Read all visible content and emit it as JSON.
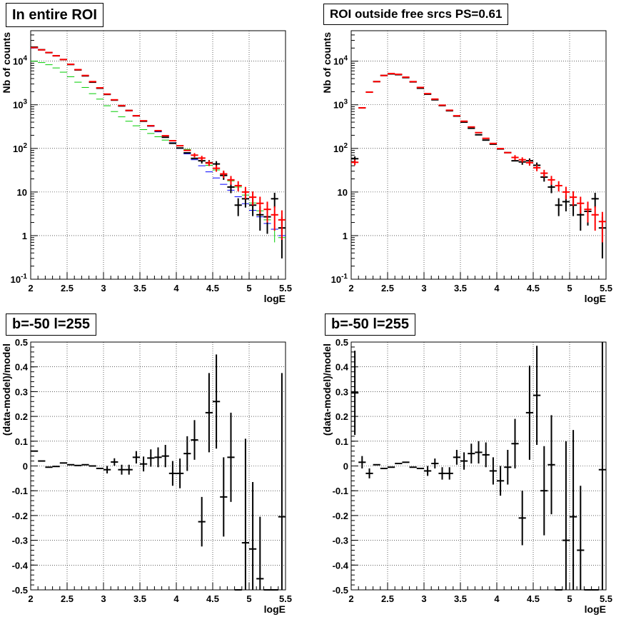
{
  "chart_data": [
    {
      "type": "scatter",
      "title": "In entire ROI",
      "xlabel": "logE",
      "ylabel": "Nb of counts",
      "xlim": [
        2,
        5.5
      ],
      "ylim": [
        0.1,
        50000
      ],
      "log_y": true,
      "grid": true,
      "x_ticks": [
        "2",
        "2.5",
        "3",
        "3.5",
        "4",
        "4.5",
        "5",
        "5.5"
      ],
      "y_ticks": [
        {
          "value": 0.1,
          "base": "10",
          "exp": "-1"
        },
        {
          "value": 1,
          "label": "1"
        },
        {
          "value": 10,
          "label": "10"
        },
        {
          "value": 100,
          "base": "10",
          "exp": "2"
        },
        {
          "value": 1000,
          "base": "10",
          "exp": "3"
        },
        {
          "value": 10000,
          "base": "10",
          "exp": "4"
        }
      ],
      "series": [
        {
          "color": "#00cc00",
          "lw": 1,
          "x": [
            2.05,
            2.15,
            2.25,
            2.35,
            2.45,
            2.55,
            2.65,
            2.75,
            2.85,
            2.95,
            3.05,
            3.15,
            3.25,
            3.35,
            3.45,
            3.55,
            3.65,
            3.75,
            3.85,
            3.95,
            4.05,
            4.15,
            4.25,
            4.35,
            4.45,
            4.55,
            4.65,
            4.75,
            4.85,
            4.95,
            5.05,
            5.15,
            5.25,
            5.35,
            5.45
          ],
          "y": [
            10000,
            9300,
            8300,
            7000,
            5600,
            4400,
            3300,
            2500,
            1800,
            1350,
            950,
            700,
            530,
            420,
            330,
            270,
            220,
            185,
            155,
            135,
            115,
            95,
            70,
            52,
            41,
            32,
            24,
            18,
            13,
            8.5,
            5.6,
            3.7,
            2.3,
            1.4,
            0.9
          ],
          "err": [
            0,
            0,
            0,
            0,
            0,
            0,
            0,
            0,
            0,
            0,
            0,
            0,
            0,
            0,
            0,
            0,
            0,
            0,
            0,
            0,
            0,
            0,
            0,
            0,
            0,
            0,
            0,
            0,
            0,
            0,
            1.5,
            1.2,
            0.9,
            0.7,
            0.5
          ]
        },
        {
          "color": "#0000ff",
          "lw": 1,
          "x": [
            2.05,
            2.15,
            2.25,
            2.35,
            2.45,
            2.55,
            2.65,
            2.75,
            2.85,
            2.95,
            3.05,
            3.15,
            3.25,
            3.35,
            3.45,
            3.55,
            3.65,
            3.75,
            3.85,
            3.95,
            4.05,
            4.15,
            4.25,
            4.35,
            4.45,
            4.55,
            4.65,
            4.75,
            4.85,
            4.95,
            5.05,
            5.15,
            5.25,
            5.35,
            5.45
          ],
          "y": [
            20000,
            18000,
            15800,
            13200,
            10800,
            8400,
            6300,
            4600,
            3300,
            2400,
            1750,
            1300,
            950,
            720,
            550,
            420,
            320,
            240,
            180,
            135,
            100,
            75,
            55,
            40,
            29,
            21,
            15,
            11,
            7.8,
            5.4,
            3.8,
            2.7,
            1.9,
            1.4,
            1.0
          ],
          "err": [
            0,
            0,
            0,
            0,
            0,
            0,
            0,
            0,
            0,
            0,
            0,
            0,
            0,
            0,
            0,
            0,
            0,
            0,
            0,
            0,
            0,
            0,
            0,
            0,
            0,
            0,
            0,
            0,
            0,
            0,
            0,
            0,
            0,
            0,
            0
          ]
        },
        {
          "color": "#000000",
          "lw": 2,
          "x": [
            2.05,
            2.15,
            2.25,
            2.35,
            2.45,
            2.55,
            2.65,
            2.75,
            2.85,
            2.95,
            3.05,
            3.15,
            3.25,
            3.35,
            3.45,
            3.55,
            3.65,
            3.75,
            3.85,
            3.95,
            4.05,
            4.15,
            4.25,
            4.35,
            4.45,
            4.55,
            4.65,
            4.75,
            4.85,
            4.95,
            5.05,
            5.15,
            5.25,
            5.35,
            5.45
          ],
          "y": [
            21000,
            18300,
            15700,
            13300,
            10900,
            8400,
            6300,
            4600,
            3300,
            2400,
            1730,
            1280,
            940,
            740,
            560,
            420,
            330,
            250,
            180,
            131,
            102,
            79,
            59,
            52,
            47,
            44,
            24,
            13,
            5,
            7,
            5,
            3,
            2.7,
            7,
            1.5
          ],
          "err": [
            0,
            0,
            0,
            0,
            0,
            0,
            0,
            0,
            0,
            0,
            0,
            0,
            0,
            0,
            0,
            0,
            0,
            0,
            0,
            0,
            0,
            0,
            0,
            7,
            7,
            7,
            5,
            3.6,
            2.2,
            2.6,
            2.2,
            1.7,
            1.6,
            2.6,
            1.2
          ]
        },
        {
          "color": "#ff0000",
          "lw": 2,
          "x": [
            2.05,
            2.15,
            2.25,
            2.35,
            2.45,
            2.55,
            2.65,
            2.75,
            2.85,
            2.95,
            3.05,
            3.15,
            3.25,
            3.35,
            3.45,
            3.55,
            3.65,
            3.75,
            3.85,
            3.95,
            4.05,
            4.15,
            4.25,
            4.35,
            4.45,
            4.55,
            4.65,
            4.75,
            4.85,
            4.95,
            5.05,
            5.15,
            5.25,
            5.35,
            5.45
          ],
          "y": [
            20500,
            18200,
            15800,
            13300,
            10900,
            8500,
            6400,
            4700,
            3400,
            2450,
            1760,
            1300,
            960,
            740,
            560,
            430,
            330,
            255,
            195,
            150,
            115,
            90,
            70,
            60,
            46,
            35,
            26,
            19,
            14,
            10,
            7.6,
            5.5,
            4,
            3,
            2.3
          ],
          "err": [
            0,
            0,
            0,
            0,
            0,
            0,
            0,
            0,
            0,
            0,
            0,
            0,
            0,
            0,
            0,
            0,
            0,
            0,
            0,
            0,
            0,
            0,
            8,
            7.5,
            6.5,
            5.8,
            5,
            4.3,
            3.7,
            3.1,
            2.7,
            2.3,
            2,
            1.7,
            1.5
          ]
        }
      ]
    },
    {
      "type": "scatter",
      "title": "ROI outside free srcs PS=0.61",
      "xlabel": "logE",
      "ylabel": "Nb of counts",
      "xlim": [
        2,
        5.5
      ],
      "ylim": [
        0.1,
        50000
      ],
      "log_y": true,
      "grid": true,
      "x_ticks": [
        "2",
        "2.5",
        "3",
        "3.5",
        "4",
        "4.5",
        "5",
        "5.5"
      ],
      "y_ticks": [
        {
          "value": 0.1,
          "base": "10",
          "exp": "-1"
        },
        {
          "value": 1,
          "label": "1"
        },
        {
          "value": 10,
          "label": "10"
        },
        {
          "value": 100,
          "base": "10",
          "exp": "2"
        },
        {
          "value": 1000,
          "base": "10",
          "exp": "3"
        },
        {
          "value": 10000,
          "base": "10",
          "exp": "4"
        }
      ],
      "series": [
        {
          "color": "#000000",
          "lw": 2,
          "x": [
            2.05,
            2.15,
            2.25,
            2.35,
            2.45,
            2.55,
            2.65,
            2.75,
            2.85,
            2.95,
            3.05,
            3.15,
            3.25,
            3.35,
            3.45,
            3.55,
            3.65,
            3.75,
            3.85,
            3.95,
            4.05,
            4.15,
            4.25,
            4.35,
            4.45,
            4.55,
            4.65,
            4.75,
            4.85,
            4.95,
            5.05,
            5.15,
            5.25,
            5.35,
            5.45
          ],
          "y": [
            58,
            850,
            1950,
            3400,
            4700,
            5100,
            4900,
            4200,
            3350,
            2400,
            1750,
            1300,
            960,
            730,
            550,
            400,
            290,
            205,
            155,
            125,
            97,
            80,
            52,
            49,
            52,
            41,
            22,
            13,
            5,
            6,
            5,
            3,
            3.6,
            7,
            1.5
          ],
          "err": [
            7.6,
            0,
            0,
            0,
            0,
            0,
            0,
            0,
            0,
            0,
            0,
            0,
            0,
            0,
            0,
            0,
            0,
            0,
            0,
            0,
            0,
            0,
            0,
            7,
            7,
            6.4,
            4.7,
            3.6,
            2.2,
            2.4,
            2.2,
            1.7,
            1.9,
            2.6,
            1.2
          ]
        },
        {
          "color": "#ff0000",
          "lw": 2,
          "x": [
            2.05,
            2.15,
            2.25,
            2.35,
            2.45,
            2.55,
            2.65,
            2.75,
            2.85,
            2.95,
            3.05,
            3.15,
            3.25,
            3.35,
            3.45,
            3.55,
            3.65,
            3.75,
            3.85,
            3.95,
            4.05,
            4.15,
            4.25,
            4.35,
            4.45,
            4.55,
            4.65,
            4.75,
            4.85,
            4.95,
            5.05,
            5.15,
            5.25,
            5.35,
            5.45
          ],
          "y": [
            48,
            850,
            1950,
            3400,
            4700,
            5200,
            5000,
            4300,
            3400,
            2500,
            1800,
            1350,
            980,
            750,
            560,
            420,
            310,
            230,
            170,
            130,
            99,
            80,
            62,
            55,
            47,
            36,
            27,
            19,
            14,
            10,
            7.6,
            5.5,
            4,
            3,
            2.1
          ],
          "err": [
            7,
            0,
            0,
            0,
            0,
            0,
            0,
            0,
            0,
            0,
            0,
            0,
            0,
            0,
            0,
            0,
            0,
            0,
            0,
            0,
            0,
            0,
            8,
            7.4,
            6.9,
            6,
            5.2,
            4.4,
            3.7,
            3.2,
            2.8,
            2.3,
            2,
            1.7,
            1.4
          ]
        }
      ]
    },
    {
      "type": "scatter",
      "title": "b=-50 l=255",
      "xlabel": "logE",
      "ylabel": "(data-model)/model",
      "xlim": [
        2,
        5.5
      ],
      "ylim": [
        -0.5,
        0.5
      ],
      "grid": true,
      "x_ticks": [
        "2",
        "2.5",
        "3",
        "3.5",
        "4",
        "4.5",
        "5",
        "5.5"
      ],
      "y_ticks": [
        "-0.5",
        "-0.4",
        "-0.3",
        "-0.2",
        "-0.1",
        "0",
        "0.1",
        "0.2",
        "0.3",
        "0.4",
        "0.5"
      ],
      "series": [
        {
          "color": "#000000",
          "lw": 2,
          "x": [
            2.05,
            2.15,
            2.25,
            2.35,
            2.45,
            2.55,
            2.65,
            2.75,
            2.85,
            2.95,
            3.05,
            3.15,
            3.25,
            3.35,
            3.45,
            3.55,
            3.65,
            3.75,
            3.85,
            3.95,
            4.05,
            4.15,
            4.25,
            4.35,
            4.45,
            4.55,
            4.65,
            4.75,
            4.85,
            4.95,
            5.05,
            5.15,
            5.25,
            5.35,
            5.45
          ],
          "y": [
            0.06,
            0.02,
            -0.005,
            -0.002,
            0.012,
            0.005,
            0.002,
            0.005,
            0,
            -0.01,
            -0.015,
            0.016,
            -0.015,
            -0.015,
            0.035,
            0.008,
            0.032,
            0.035,
            0.04,
            -0.03,
            -0.03,
            0.05,
            0.105,
            -0.225,
            0.215,
            0.26,
            -0.125,
            0.035,
            -0.5,
            -0.31,
            -0.335,
            -0.455,
            -0.5,
            -0.5,
            -0.205
          ],
          "err": [
            0,
            0,
            0,
            0,
            0,
            0,
            0,
            0,
            0,
            0,
            0.015,
            0.015,
            0.02,
            0.02,
            0.025,
            0.03,
            0.035,
            0.04,
            0.045,
            0.05,
            0.06,
            0.07,
            0.08,
            0.1,
            0.16,
            0.19,
            0.16,
            0.18,
            0,
            0.42,
            0.27,
            0.25,
            0,
            0,
            0.58
          ]
        }
      ]
    },
    {
      "type": "scatter",
      "title": "b=-50 l=255",
      "xlabel": "logE",
      "ylabel": "(data-model)/model",
      "xlim": [
        2,
        5.5
      ],
      "ylim": [
        -0.5,
        0.5
      ],
      "grid": true,
      "x_ticks": [
        "2",
        "2.5",
        "3",
        "3.5",
        "4",
        "4.5",
        "5",
        "5.5"
      ],
      "y_ticks": [
        "-0.5",
        "-0.4",
        "-0.3",
        "-0.2",
        "-0.1",
        "0",
        "0.1",
        "0.2",
        "0.3",
        "0.4",
        "0.5"
      ],
      "series": [
        {
          "color": "#000000",
          "lw": 2,
          "x": [
            2.05,
            2.15,
            2.25,
            2.35,
            2.45,
            2.55,
            2.65,
            2.75,
            2.85,
            2.95,
            3.05,
            3.15,
            3.25,
            3.35,
            3.45,
            3.55,
            3.65,
            3.75,
            3.85,
            3.95,
            4.05,
            4.15,
            4.25,
            4.35,
            4.45,
            4.55,
            4.65,
            4.75,
            4.85,
            4.95,
            5.05,
            5.15,
            5.25,
            5.35,
            5.45
          ],
          "y": [
            0.295,
            0.015,
            -0.03,
            0.005,
            -0.01,
            -0.005,
            0.01,
            0.015,
            -0.005,
            -0.01,
            -0.02,
            0.01,
            -0.03,
            -0.03,
            0.035,
            0.02,
            0.05,
            0.055,
            0.045,
            -0.02,
            -0.06,
            -0.005,
            0.09,
            -0.21,
            0.215,
            0.285,
            -0.1,
            0.005,
            -0.5,
            -0.3,
            -0.205,
            -0.34,
            -0.5,
            -0.5,
            -0.015
          ],
          "err": [
            0.17,
            0.025,
            0.02,
            0,
            0,
            0,
            0,
            0,
            0,
            0,
            0.02,
            0.02,
            0.025,
            0.025,
            0.03,
            0.035,
            0.04,
            0.045,
            0.05,
            0.055,
            0.06,
            0.07,
            0.1,
            0.11,
            0.19,
            0.2,
            0.18,
            0.2,
            0,
            0.4,
            0.35,
            0.26,
            0,
            0,
            0.7
          ]
        }
      ]
    }
  ]
}
